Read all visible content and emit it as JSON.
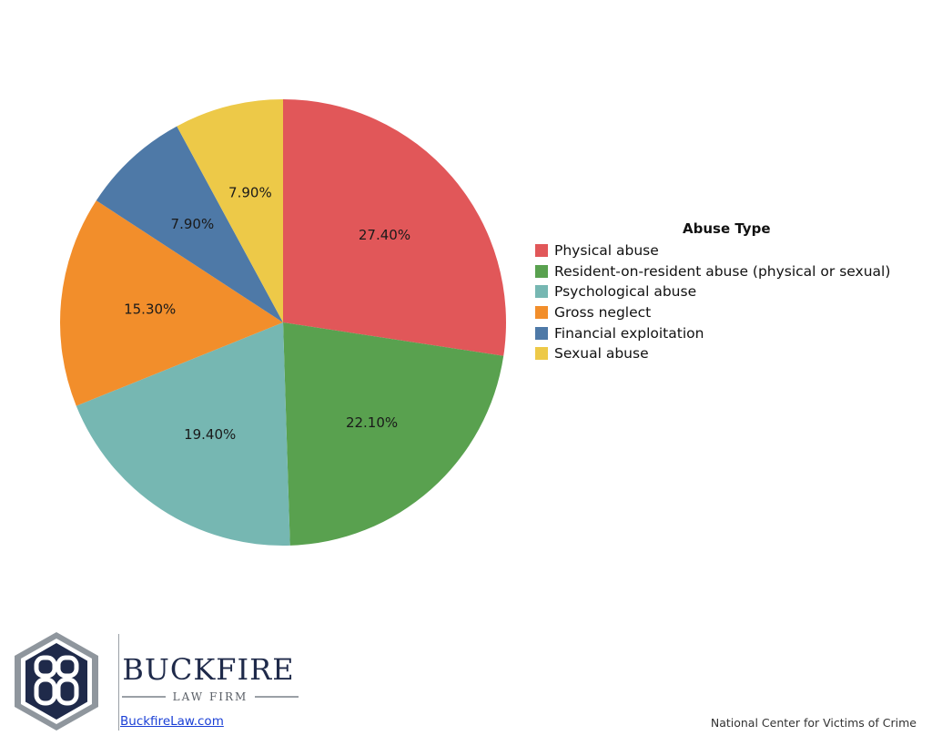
{
  "chart_data": {
    "type": "pie",
    "title": "",
    "legend_title": "Abuse Type",
    "legend_position": "right",
    "slices": [
      {
        "label": "Physical abuse",
        "value": 27.4,
        "display": "27.40%",
        "color": "#e15759"
      },
      {
        "label": "Resident-on-resident abuse (physical or sexual)",
        "value": 22.1,
        "display": "22.10%",
        "color": "#59a14f"
      },
      {
        "label": "Psychological abuse",
        "value": 19.4,
        "display": "19.40%",
        "color": "#76b7b2"
      },
      {
        "label": "Gross neglect",
        "value": 15.3,
        "display": "15.30%",
        "color": "#f28e2b"
      },
      {
        "label": "Financial exploitation",
        "value": 7.9,
        "display": "7.90%",
        "color": "#4e79a7"
      },
      {
        "label": "Sexual abuse",
        "value": 7.9,
        "display": "7.90%",
        "color": "#edc948"
      }
    ]
  },
  "branding": {
    "name": "BUCKFIRE",
    "subtitle": "LAW FIRM",
    "url_text": "BuckfireLaw.com",
    "colors": {
      "navy": "#1f2a4a",
      "gray": "#9aa0a6"
    }
  },
  "source": "National Center for Victims of Crime"
}
